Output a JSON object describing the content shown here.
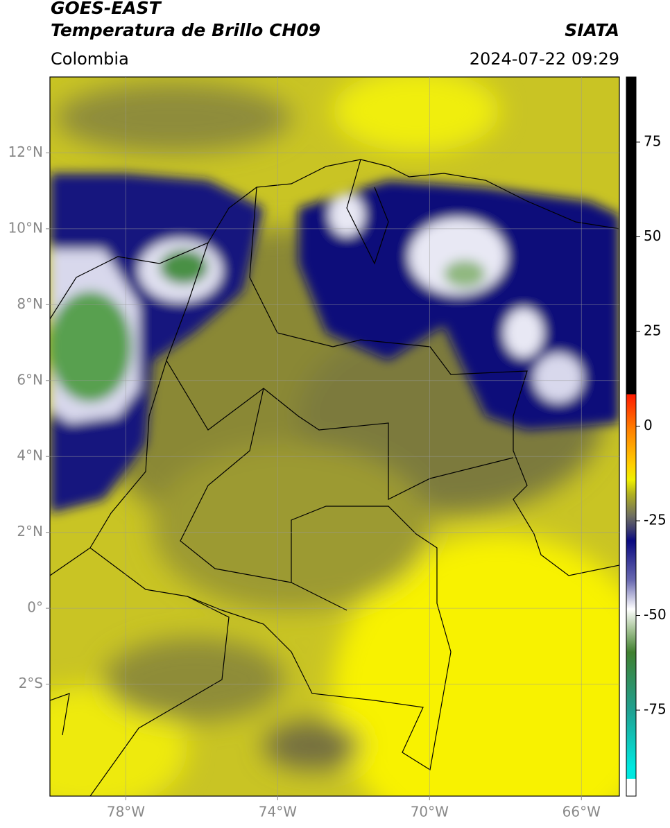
{
  "header": {
    "title_1": "GOES-EAST",
    "title_2": "Temperatura de Brillo CH09",
    "source": "SIATA",
    "region": "Colombia",
    "timestamp": "2024-07-22 09:29"
  },
  "map": {
    "xlim": [
      -80,
      -65
    ],
    "ylim": [
      -4.95,
      14
    ],
    "xticks": [
      {
        "value": -78,
        "label": "78°W"
      },
      {
        "value": -74,
        "label": "74°W"
      },
      {
        "value": -70,
        "label": "70°W"
      },
      {
        "value": -66,
        "label": "66°W"
      }
    ],
    "yticks": [
      {
        "value": 12,
        "label": "12°N"
      },
      {
        "value": 10,
        "label": "10°N"
      },
      {
        "value": 8,
        "label": "8°N"
      },
      {
        "value": 6,
        "label": "6°N"
      },
      {
        "value": 4,
        "label": "4°N"
      },
      {
        "value": 2,
        "label": "2°N"
      },
      {
        "value": 0,
        "label": "0°"
      },
      {
        "value": -2,
        "label": "2°S"
      }
    ],
    "grid": true
  },
  "colorbar": {
    "lim": [
      -97.7,
      92.2
    ],
    "ticks": [
      75,
      50,
      25,
      0,
      -25,
      -50,
      -75
    ]
  }
}
